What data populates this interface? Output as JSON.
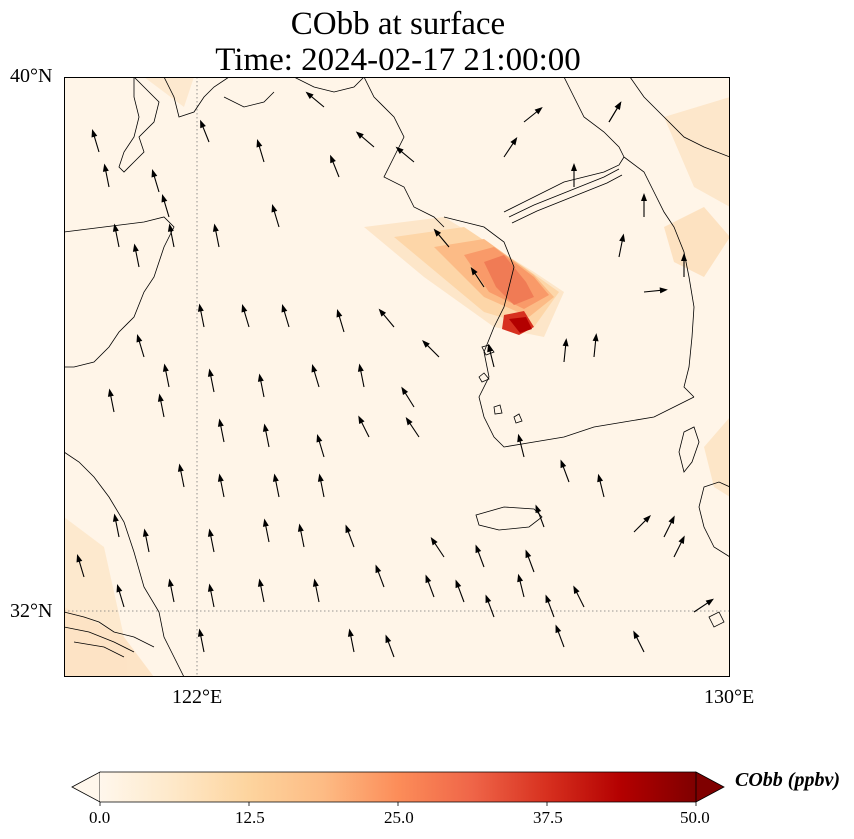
{
  "title_line1": "CObb at surface",
  "title_line2": "Time: 2024-02-17 21:00:00",
  "map": {
    "lat_labels": [
      "40°N",
      "32°N"
    ],
    "lon_labels": [
      "122°E",
      "130°E"
    ],
    "lon_range": [
      120,
      130
    ],
    "lat_range": [
      31,
      40
    ],
    "gridlines": {
      "lon": [
        122
      ],
      "lat": [
        32
      ],
      "style": "dotted"
    },
    "plume": {
      "description_values": "elevated CObb near western Korean coast (≈37.5°N 126.5°E), peak near upper range",
      "peak_ppbv": 45
    }
  },
  "colorbar": {
    "label": "CObb (ppbv)",
    "ticks": [
      "0.0",
      "12.5",
      "25.0",
      "37.5",
      "50.0"
    ],
    "vmin": 0,
    "vmax": 50,
    "extend": "both",
    "colormap": "OrRd",
    "colors": [
      "#fff7ec",
      "#fee8c8",
      "#fdd49e",
      "#fdbb84",
      "#fc8d59",
      "#ef6548",
      "#d7301f",
      "#b30000",
      "#7f0000"
    ]
  }
}
